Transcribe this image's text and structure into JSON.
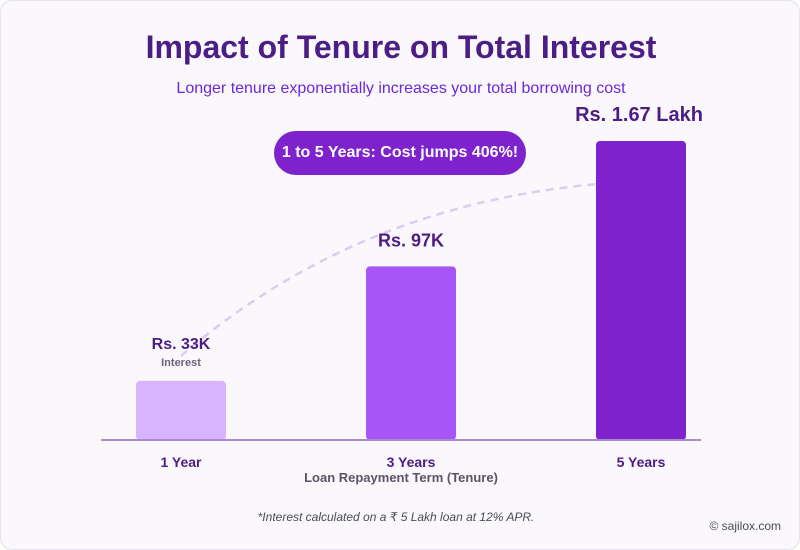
{
  "title": "Impact of Tenure on Total Interest",
  "subtitle": "Longer tenure exponentially increases your total borrowing cost",
  "badge": "1 to 5 Years: Cost jumps 406%!",
  "footnote": "*Interest calculated on a ₹ 5 Lakh loan at 12% APR.",
  "credit": "© sajilox.com",
  "colors": {
    "title": "#4c1d84",
    "bars": [
      "#d8b4fe",
      "#a855f7",
      "#7e22ce"
    ],
    "trend": "#d9cdf0",
    "axis": "#a78bcc"
  },
  "chart_data": {
    "type": "bar",
    "categories": [
      "1 Year",
      "3 Years",
      "5 Years"
    ],
    "values": [
      33,
      97,
      167
    ],
    "unit": "thousand Rs.",
    "data_labels": [
      "Rs. 33K",
      "Rs. 97K",
      "Rs. 1.67 Lakh"
    ],
    "first_bar_sublabel": "Interest",
    "xlabel": "Loan Repayment Term (Tenure)",
    "ylabel": "",
    "ylim": [
      0,
      167
    ],
    "grid": false,
    "trend_line": "dashed"
  }
}
